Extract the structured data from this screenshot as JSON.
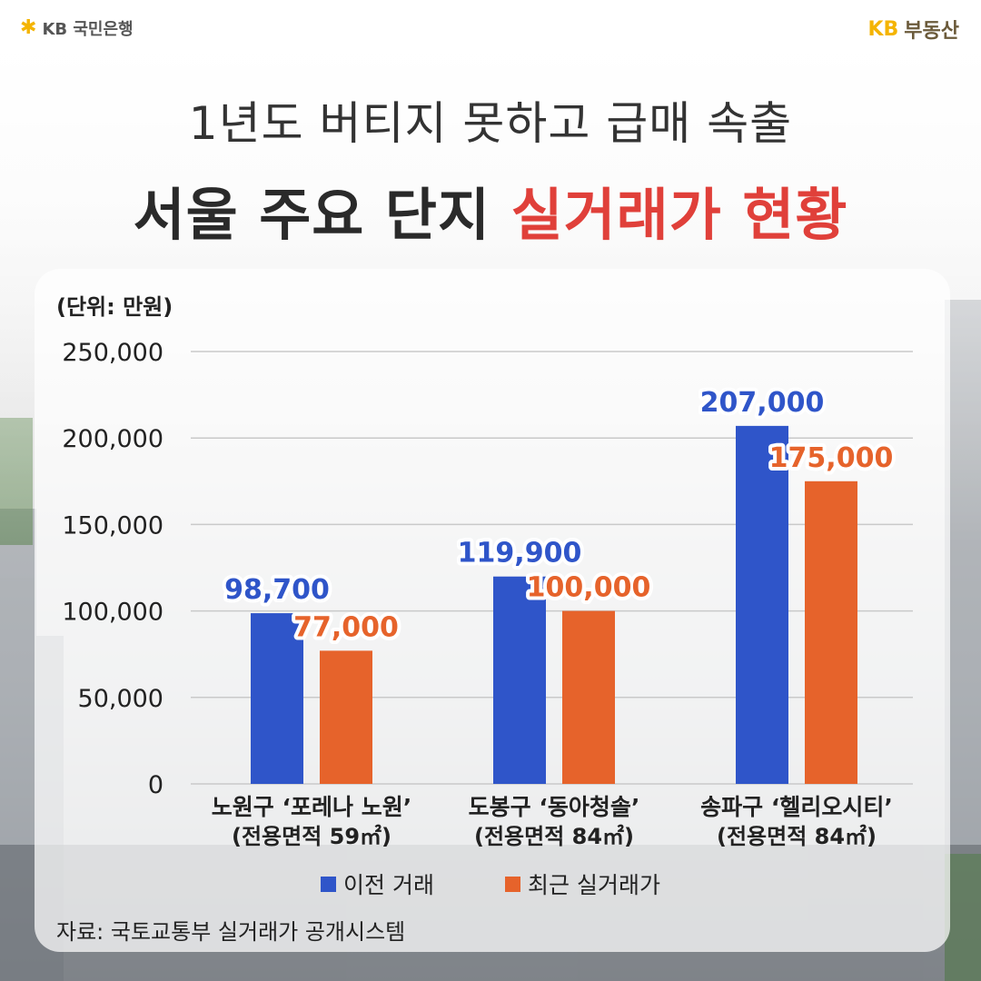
{
  "brand": {
    "left_logo": "KB 국민은행",
    "right_logo_kb": "KB",
    "right_logo_name": "부동산"
  },
  "title": {
    "line1": "1년도 버티지 못하고 급매 속출",
    "line2_plain": "서울 주요 단지 ",
    "line2_accent": "실거래가 현황"
  },
  "colors": {
    "accent_red": "#e0403a",
    "series_previous": "#2f55c9",
    "series_recent": "#e6632b",
    "kb_yellow": "#f4b400"
  },
  "chart_data": {
    "type": "bar",
    "unit_label": "(단위: 만원)",
    "categories": [
      {
        "line1": "노원구 ‘포레나 노원’",
        "line2": "(전용면적 59㎡)"
      },
      {
        "line1": "도봉구 ‘동아청솔’",
        "line2": "(전용면적 84㎡)"
      },
      {
        "line1": "송파구 ‘헬리오시티’",
        "line2": "(전용면적 84㎡)"
      }
    ],
    "series": [
      {
        "name": "이전 거래",
        "color": "#2f55c9",
        "values": [
          98700,
          119900,
          207000
        ],
        "labels": [
          "98,700",
          "119,900",
          "207,000"
        ]
      },
      {
        "name": "최근 실거래가",
        "color": "#e6632b",
        "values": [
          77000,
          100000,
          175000
        ],
        "labels": [
          "77,000",
          "100,000",
          "175,000"
        ]
      }
    ],
    "ylim": [
      0,
      250000
    ],
    "yticks": [
      0,
      50000,
      100000,
      150000,
      200000,
      250000
    ],
    "ytick_labels": [
      "0",
      "50,000",
      "100,000",
      "150,000",
      "200,000",
      "250,000"
    ],
    "grid": true,
    "legend_position": "bottom-center"
  },
  "source_text": "자료: 국토교통부 실거래가 공개시스템"
}
